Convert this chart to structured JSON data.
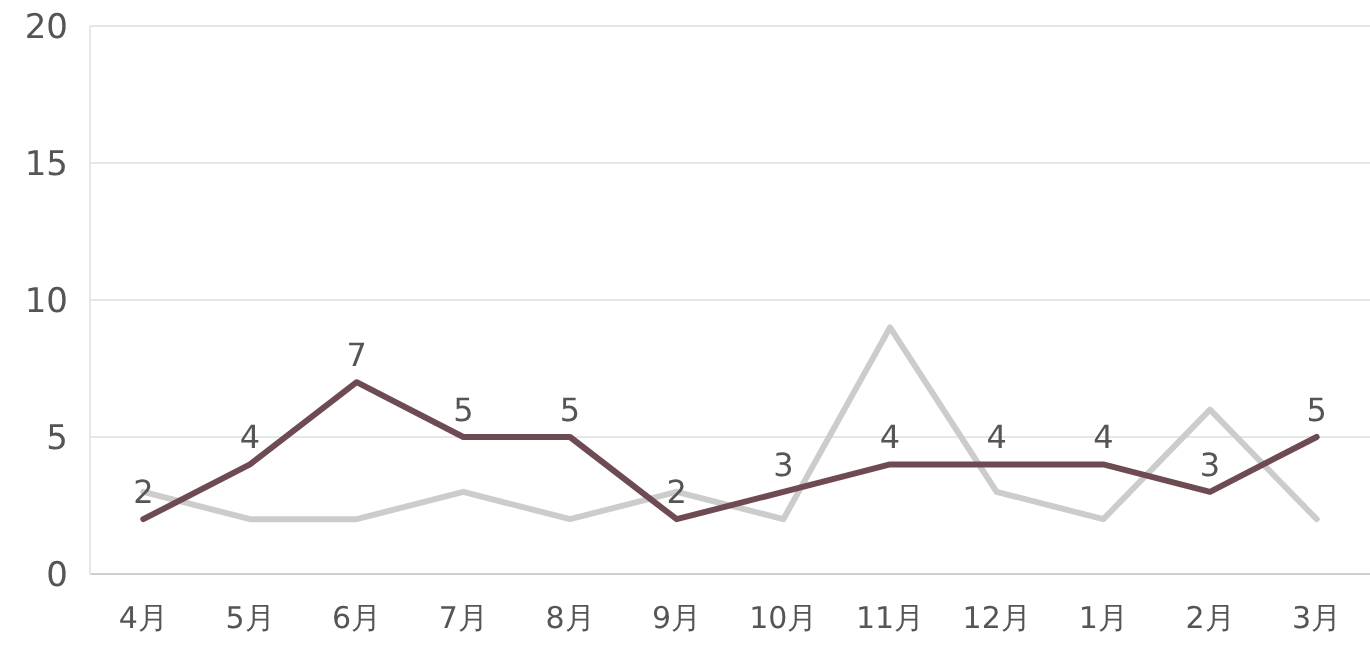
{
  "chart_data": {
    "type": "line",
    "categories": [
      "4月",
      "5月",
      "6月",
      "7月",
      "8月",
      "9月",
      "10月",
      "11月",
      "12月",
      "1月",
      "2月",
      "3月"
    ],
    "series": [
      {
        "color": "#cccccc",
        "values": [
          3,
          2,
          2,
          3,
          2,
          3,
          2,
          9,
          3,
          2,
          6,
          2
        ]
      },
      {
        "color": "#6e4b52",
        "values": [
          2,
          4,
          7,
          5,
          5,
          2,
          3,
          4,
          4,
          4,
          3,
          5
        ],
        "value_labels": [
          "2",
          "4",
          "7",
          "5",
          "5",
          "2",
          "3",
          "4",
          "4",
          "4",
          "3",
          "5"
        ]
      }
    ],
    "ylim": [
      0,
      20
    ],
    "yticks": [
      0,
      5,
      10,
      15,
      20
    ],
    "grid": "y",
    "marker": "none",
    "line_style": "solid"
  }
}
